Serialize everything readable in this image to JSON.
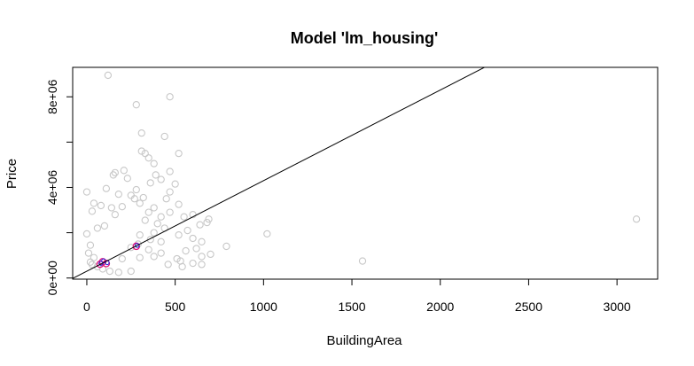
{
  "chart_data": {
    "type": "scatter",
    "title": "Model 'lm_housing'",
    "xlabel": "BuildingArea",
    "ylabel": "Price",
    "xlim": [
      -80,
      3230
    ],
    "ylim": [
      -50000,
      9300000
    ],
    "xticks": [
      0,
      500,
      1000,
      1500,
      2000,
      2500,
      3000
    ],
    "xtick_labels": [
      "0",
      "500",
      "1000",
      "1500",
      "2000",
      "2500",
      "3000"
    ],
    "yticks": [
      0,
      2000000,
      4000000,
      6000000,
      8000000
    ],
    "ytick_labels": [
      "0e+00",
      "",
      "4e+06",
      "",
      "8e+06"
    ],
    "grid": false,
    "point_color": "#c8c8c8",
    "highlight_colors": [
      "#e0107a",
      "#2020e0"
    ],
    "regression_line": {
      "intercept": 300000,
      "slope": 4000,
      "color": "#000000"
    },
    "series": [
      {
        "points": [
          [
            120,
            8950000
          ],
          [
            470,
            8000000
          ],
          [
            280,
            7650000
          ],
          [
            310,
            6400000
          ],
          [
            440,
            6250000
          ],
          [
            310,
            5600000
          ],
          [
            330,
            5500000
          ],
          [
            350,
            5300000
          ],
          [
            520,
            5500000
          ],
          [
            380,
            5050000
          ],
          [
            160,
            4650000
          ],
          [
            150,
            4550000
          ],
          [
            210,
            4750000
          ],
          [
            470,
            4700000
          ],
          [
            390,
            4550000
          ],
          [
            230,
            4400000
          ],
          [
            420,
            4350000
          ],
          [
            360,
            4200000
          ],
          [
            500,
            4150000
          ],
          [
            0,
            3800000
          ],
          [
            110,
            3950000
          ],
          [
            280,
            3900000
          ],
          [
            470,
            3800000
          ],
          [
            180,
            3700000
          ],
          [
            250,
            3650000
          ],
          [
            320,
            3550000
          ],
          [
            450,
            3500000
          ],
          [
            40,
            3300000
          ],
          [
            520,
            3250000
          ],
          [
            80,
            3200000
          ],
          [
            200,
            3150000
          ],
          [
            380,
            3100000
          ],
          [
            470,
            2900000
          ],
          [
            600,
            2800000
          ],
          [
            550,
            2700000
          ],
          [
            30,
            2950000
          ],
          [
            690,
            2600000
          ],
          [
            680,
            2450000
          ],
          [
            640,
            2350000
          ],
          [
            1020,
            1950000
          ],
          [
            570,
            2100000
          ],
          [
            520,
            1900000
          ],
          [
            600,
            1750000
          ],
          [
            650,
            1600000
          ],
          [
            790,
            1400000
          ],
          [
            620,
            1300000
          ],
          [
            560,
            1200000
          ],
          [
            700,
            1050000
          ],
          [
            650,
            950000
          ],
          [
            510,
            850000
          ],
          [
            530,
            750000
          ],
          [
            600,
            650000
          ],
          [
            650,
            600000
          ],
          [
            540,
            500000
          ],
          [
            460,
            600000
          ],
          [
            1560,
            750000
          ],
          [
            3110,
            2600000
          ],
          [
            60,
            2200000
          ],
          [
            100,
            2300000
          ],
          [
            0,
            1950000
          ],
          [
            20,
            1450000
          ],
          [
            10,
            1100000
          ],
          [
            40,
            900000
          ],
          [
            20,
            700000
          ],
          [
            30,
            600000
          ],
          [
            60,
            500000
          ],
          [
            90,
            400000
          ],
          [
            130,
            300000
          ],
          [
            180,
            250000
          ],
          [
            250,
            300000
          ],
          [
            160,
            2800000
          ],
          [
            140,
            3100000
          ],
          [
            300,
            3300000
          ],
          [
            270,
            3500000
          ],
          [
            350,
            2900000
          ],
          [
            420,
            2700000
          ],
          [
            400,
            2400000
          ],
          [
            330,
            2550000
          ],
          [
            440,
            2200000
          ],
          [
            380,
            2000000
          ],
          [
            300,
            1900000
          ],
          [
            360,
            1700000
          ],
          [
            420,
            1600000
          ],
          [
            290,
            1500000
          ],
          [
            250,
            1350000
          ],
          [
            350,
            1250000
          ],
          [
            420,
            1100000
          ],
          [
            380,
            950000
          ],
          [
            300,
            900000
          ],
          [
            200,
            850000
          ]
        ]
      },
      {
        "name": "",
        "points": [
          [
            280,
            1400000
          ],
          [
            90,
            720000
          ],
          [
            110,
            640000
          ],
          [
            75,
            610000
          ]
        ]
      }
    ]
  }
}
